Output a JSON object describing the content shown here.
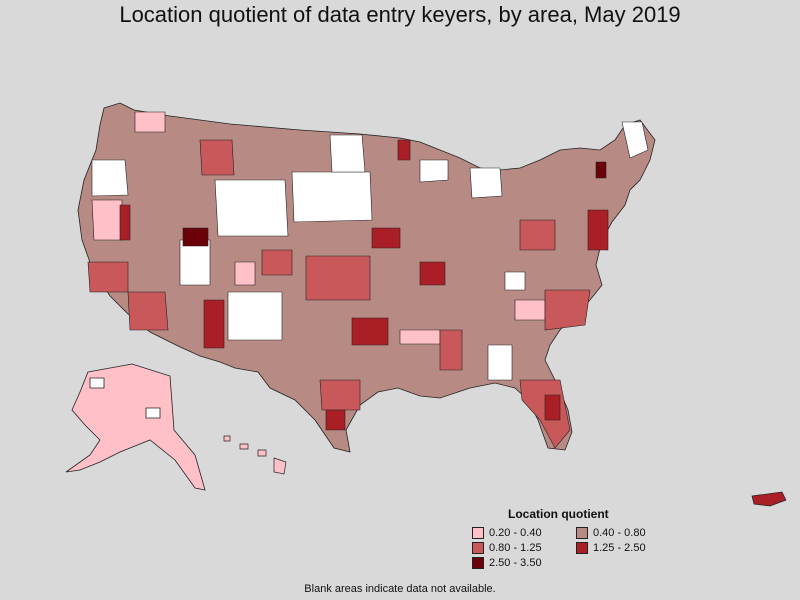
{
  "title": "Location quotient of data entry keyers, by area, May 2019",
  "legend": {
    "title": "Location quotient",
    "items": [
      {
        "label": "0.20 - 0.40",
        "color": "#ffc0c8"
      },
      {
        "label": "0.40 - 0.80",
        "color": "#b88a84"
      },
      {
        "label": "0.80 - 1.25",
        "color": "#c8585a"
      },
      {
        "label": "1.25 - 2.50",
        "color": "#aa1f26"
      },
      {
        "label": "2.50 - 3.50",
        "color": "#6a0008"
      }
    ]
  },
  "footnote": "Blank areas indicate data not available.",
  "colors": {
    "background": "#d9d9d9",
    "no_data": "#ffffff",
    "border": "#222222"
  }
}
